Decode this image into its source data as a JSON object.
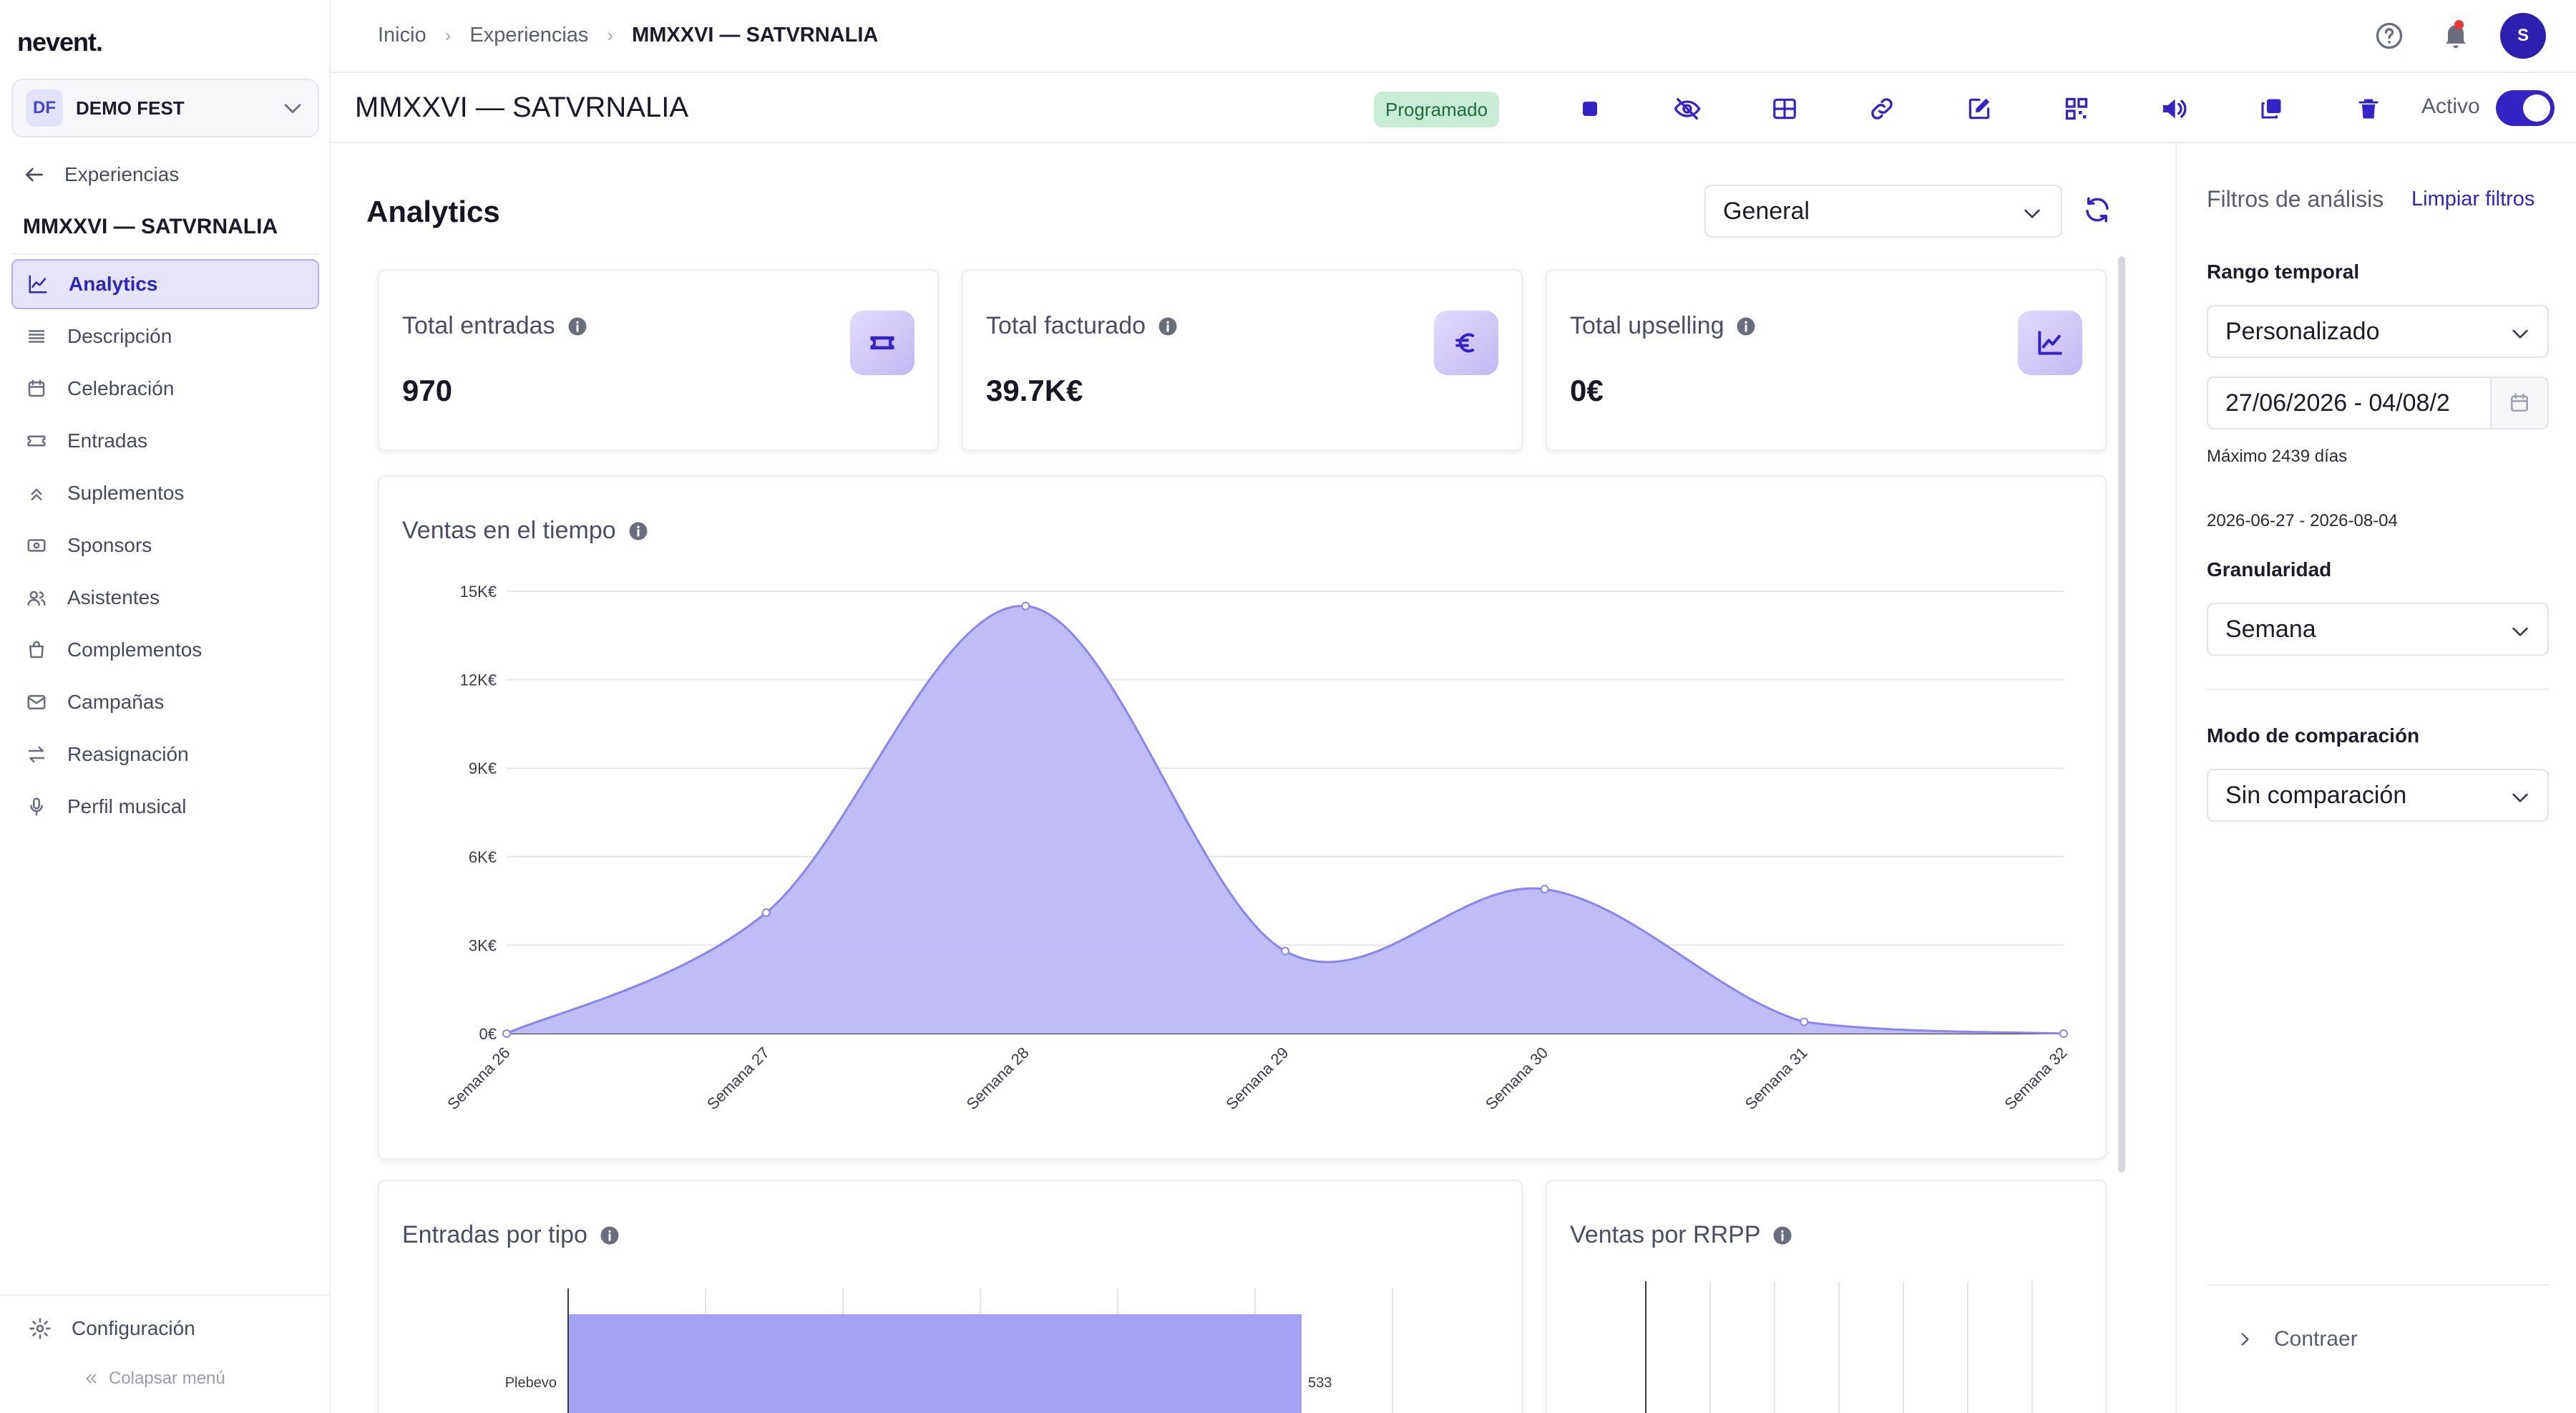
{
  "app": {
    "logo": "nevent."
  },
  "org": {
    "initials": "DF",
    "name": "DEMO FEST"
  },
  "sidebar": {
    "back_label": "Experiencias",
    "event_title": "MMXXVI — SATVRNALIA",
    "items": [
      {
        "label": "Analytics",
        "icon": "chart-line-icon",
        "active": true
      },
      {
        "label": "Descripción",
        "icon": "lines-icon"
      },
      {
        "label": "Celebración",
        "icon": "calendar-icon"
      },
      {
        "label": "Entradas",
        "icon": "ticket-icon"
      },
      {
        "label": "Suplementos",
        "icon": "chevrons-up-icon"
      },
      {
        "label": "Sponsors",
        "icon": "money-icon"
      },
      {
        "label": "Asistentes",
        "icon": "users-icon"
      },
      {
        "label": "Complementos",
        "icon": "bag-icon"
      },
      {
        "label": "Campañas",
        "icon": "mail-icon"
      },
      {
        "label": "Reasignación",
        "icon": "swap-icon"
      },
      {
        "label": "Perfil musical",
        "icon": "mic-icon"
      }
    ],
    "config_label": "Configuración",
    "collapse_label": "Colapsar menú"
  },
  "topbar": {
    "breadcrumb": [
      "Inicio",
      "Experiencias",
      "MMXXVI — SATVRNALIA"
    ],
    "avatar_initial": "S"
  },
  "event": {
    "name": "MMXXVI — SATVRNALIA",
    "status": "Programado",
    "active_label": "Activo",
    "active": true,
    "tools": [
      "stop-icon",
      "eye-off-icon",
      "grid-icon",
      "link-icon",
      "edit-icon",
      "qr-icon",
      "megaphone-icon",
      "duplicate-icon",
      "trash-icon"
    ]
  },
  "main": {
    "title": "Analytics",
    "scope_value": "General",
    "kpis": [
      {
        "label": "Total entradas",
        "value": "970",
        "icon": "ticket-icon"
      },
      {
        "label": "Total facturado",
        "value": "39.7K€",
        "icon": "euro-icon"
      },
      {
        "label": "Total upselling",
        "value": "0€",
        "icon": "chart-line-icon"
      }
    ],
    "sales_title": "Ventas en el tiempo",
    "types_title": "Entradas por tipo",
    "rrpp_title": "Ventas por RRPP"
  },
  "filters": {
    "title": "Filtros de análisis",
    "clear": "Limpiar filtros",
    "range_label": "Rango temporal",
    "range_value": "Personalizado",
    "date_value": "27/06/2026 - 04/08/2",
    "max_note": "Máximo 2439 días",
    "range_text": "2026-06-27 - 2026-08-04",
    "granularity_label": "Granularidad",
    "granularity_value": "Semana",
    "compare_label": "Modo de comparación",
    "compare_value": "Sin comparación",
    "collapse_label": "Contraer"
  },
  "colors": {
    "accent": "#3523c4",
    "area_fill": "#bcb8f6",
    "area_line": "#8a84ee",
    "bar": "#a6a1f4"
  },
  "chart_data": [
    {
      "type": "area",
      "title": "Ventas en el tiempo",
      "categories": [
        "Semana 26",
        "Semana 27",
        "Semana 28",
        "Semana 29",
        "Semana 30",
        "Semana 31",
        "Semana 32"
      ],
      "values": [
        0,
        4100,
        14500,
        2800,
        4900,
        400,
        0
      ],
      "y_ticks": [
        "0€",
        "3K€",
        "6K€",
        "9K€",
        "12K€",
        "15K€"
      ],
      "ylim": [
        0,
        15000
      ],
      "grid": true
    },
    {
      "type": "bar",
      "orientation": "horizontal",
      "title": "Entradas por tipo",
      "categories": [
        "Plebevo"
      ],
      "values": [
        533
      ]
    }
  ]
}
